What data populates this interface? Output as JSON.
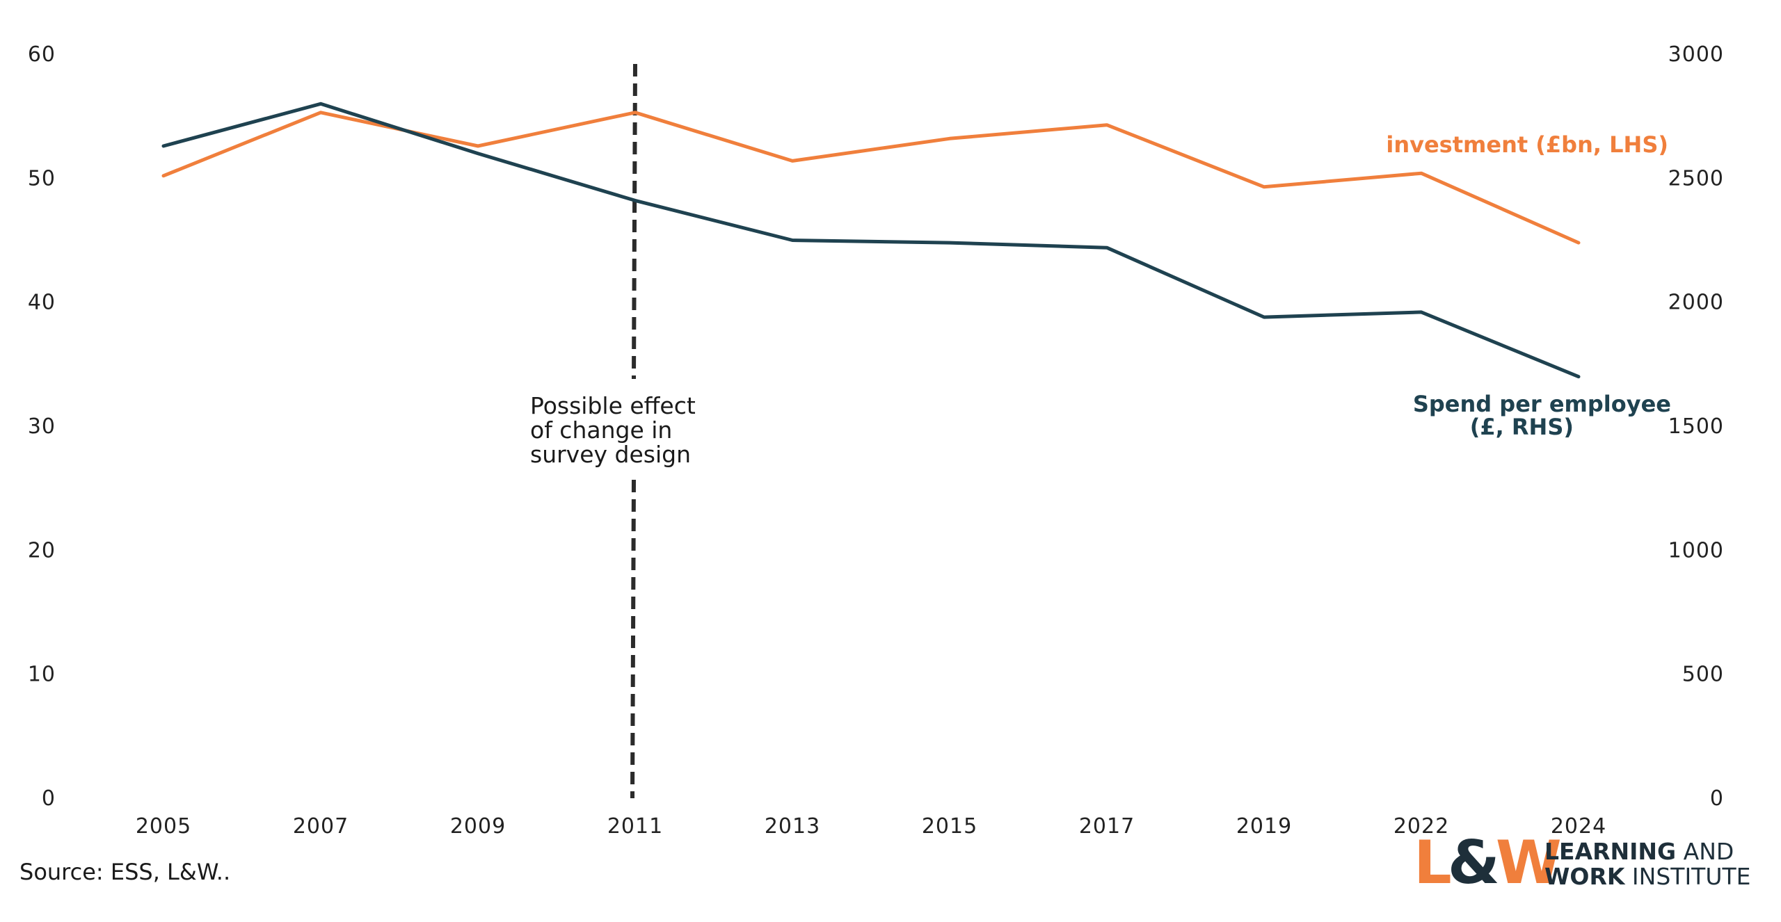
{
  "chart_data": {
    "type": "line",
    "categories": [
      "2005",
      "2007",
      "2009",
      "2011",
      "2013",
      "2015",
      "2017",
      "2019",
      "2022",
      "2024"
    ],
    "series": [
      {
        "name": "investment (£bn, LHS)",
        "axis": "left",
        "color": "#f07f3c",
        "values": [
          50.2,
          55.3,
          52.6,
          55.3,
          51.4,
          53.2,
          54.3,
          49.3,
          50.4,
          44.8
        ]
      },
      {
        "name": "Spend per employee (£, RHS)",
        "name_lines": [
          "Spend per employee",
          "(£, RHS)"
        ],
        "axis": "right",
        "color": "#1f4250",
        "values": [
          2630,
          2800,
          2600,
          2410,
          2250,
          2240,
          2220,
          1940,
          1960,
          1700
        ]
      }
    ],
    "y_left": {
      "min": 0,
      "max": 60,
      "ticks": [
        "0",
        "10",
        "20",
        "30",
        "40",
        "50",
        "60"
      ]
    },
    "y_right": {
      "min": 0,
      "max": 3000,
      "ticks": [
        "0",
        "500",
        "1000",
        "1500",
        "2000",
        "2500",
        "3000"
      ]
    },
    "grid": false,
    "legend": "inline labels at right",
    "annotation": {
      "at_category": "2011",
      "style": "dashed vertical line",
      "lines": [
        "Possible effect",
        "of change in",
        "survey design"
      ]
    }
  },
  "source": "Source: ESS, L&W..",
  "logo": {
    "mark_left": "L",
    "mark_amp": "&",
    "mark_right": "W",
    "line1_bold": "LEARNING",
    "line1_rest": " AND",
    "line2_bold": "WORK",
    "line2_rest": " INSTITUTE",
    "colors": {
      "orange": "#f07f3c",
      "navy": "#1e2f3a"
    }
  }
}
